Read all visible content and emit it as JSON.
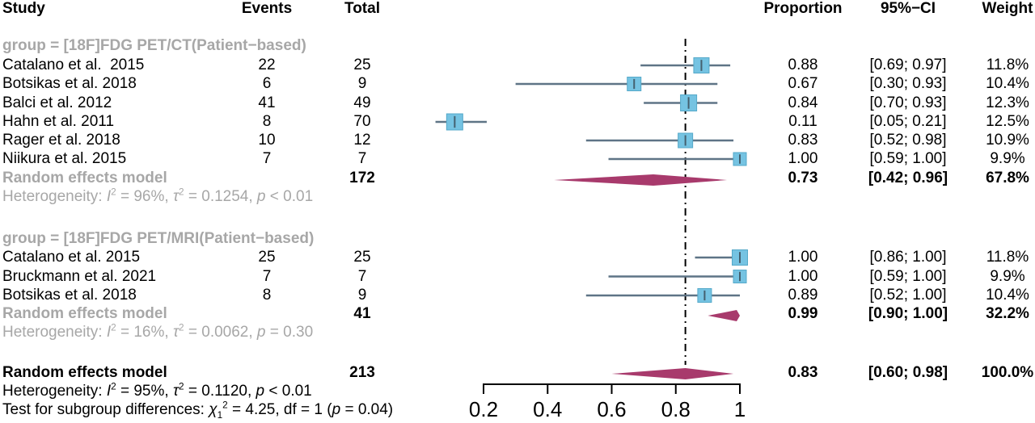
{
  "columns": {
    "study": "Study",
    "events": "Events",
    "total": "Total",
    "proportion": "Proportion",
    "ci": "95%−CI",
    "weight": "Weight"
  },
  "chart_data": {
    "type": "forest",
    "effect_measure": "Proportion",
    "axis": {
      "min": 0.2,
      "max": 1.0,
      "ticks": [
        0.2,
        0.4,
        0.6,
        0.8,
        1.0
      ],
      "labels": [
        "0.2",
        "0.4",
        "0.6",
        "0.8",
        "1"
      ]
    },
    "reference_line": 0.83,
    "groups": [
      {
        "label": "group = [18F]FDG PET/CT(Patient−based)",
        "studies": [
          {
            "study": "Catalano et al.  2015",
            "events": "22",
            "total": "25",
            "proportion": 0.88,
            "ci_low": 0.69,
            "ci_high": 0.97,
            "ci_text": "[0.69; 0.97]",
            "weight": 11.8,
            "weight_text": "11.8%"
          },
          {
            "study": "Botsikas et al. 2018",
            "events": "6",
            "total": "9",
            "proportion": 0.67,
            "ci_low": 0.3,
            "ci_high": 0.93,
            "ci_text": "[0.30; 0.93]",
            "weight": 10.4,
            "weight_text": "10.4%"
          },
          {
            "study": "Balci et al. 2012",
            "events": "41",
            "total": "49",
            "proportion": 0.84,
            "ci_low": 0.7,
            "ci_high": 0.93,
            "ci_text": "[0.70; 0.93]",
            "weight": 12.3,
            "weight_text": "12.3%"
          },
          {
            "study": "Hahn et al. 2011",
            "events": "8",
            "total": "70",
            "proportion": 0.11,
            "ci_low": 0.05,
            "ci_high": 0.21,
            "ci_text": "[0.05; 0.21]",
            "weight": 12.5,
            "weight_text": "12.5%"
          },
          {
            "study": "Rager et al. 2018",
            "events": "10",
            "total": "12",
            "proportion": 0.83,
            "ci_low": 0.52,
            "ci_high": 0.98,
            "ci_text": "[0.52; 0.98]",
            "weight": 10.9,
            "weight_text": "10.9%"
          },
          {
            "study": "Niikura et al. 2015",
            "events": "7",
            "total": "7",
            "proportion": 1.0,
            "ci_low": 0.59,
            "ci_high": 1.0,
            "ci_text": "[0.59; 1.00]",
            "weight": 9.9,
            "weight_text": "9.9%"
          }
        ],
        "summary": {
          "label": "Random effects model",
          "total": "172",
          "proportion": 0.73,
          "ci_low": 0.42,
          "ci_high": 0.96,
          "ci_text": "[0.42; 0.96]",
          "weight_text": "67.8%"
        },
        "heterogeneity": "Heterogeneity: I² = 96%, τ² = 0.1254, p < 0.01"
      },
      {
        "label": "group = [18F]FDG PET/MRI(Patient−based)",
        "studies": [
          {
            "study": "Catalano et al. 2015",
            "events": "25",
            "total": "25",
            "proportion": 1.0,
            "ci_low": 0.86,
            "ci_high": 1.0,
            "ci_text": "[0.86; 1.00]",
            "weight": 11.8,
            "weight_text": "11.8%"
          },
          {
            "study": "Bruckmann et al. 2021",
            "events": "7",
            "total": "7",
            "proportion": 1.0,
            "ci_low": 0.59,
            "ci_high": 1.0,
            "ci_text": "[0.59; 1.00]",
            "weight": 9.9,
            "weight_text": "9.9%"
          },
          {
            "study": "Botsikas et al. 2018",
            "events": "8",
            "total": "9",
            "proportion": 0.89,
            "ci_low": 0.52,
            "ci_high": 1.0,
            "ci_text": "[0.52; 1.00]",
            "weight": 10.4,
            "weight_text": "10.4%"
          }
        ],
        "summary": {
          "label": "Random effects model",
          "total": "41",
          "proportion": 0.99,
          "ci_low": 0.9,
          "ci_high": 1.0,
          "ci_text": "[0.90; 1.00]",
          "weight_text": "32.2%"
        },
        "heterogeneity": "Heterogeneity: I² = 16%, τ² = 0.0062, p = 0.30"
      }
    ],
    "overall": {
      "label": "Random effects model",
      "total": "213",
      "proportion": 0.83,
      "ci_low": 0.6,
      "ci_high": 0.98,
      "ci_text": "[0.60; 0.98]",
      "weight_text": "100.0%"
    },
    "overall_heterogeneity": "Heterogeneity: I² = 95%, τ² = 0.1120, p < 0.01",
    "subgroup_test": "Test for subgroup differences: χ₁² = 4.25, df = 1 (p = 0.04)"
  },
  "colors": {
    "square": "#75c3e2",
    "square_border": "#55a9c9",
    "ci_line": "#5e7486",
    "estimate_tick": "#44606f",
    "diamond": "#a83a6c",
    "reference_line": "#000000",
    "axis": "#000000",
    "group_text": "#a7a7a7",
    "body_text": "#000000"
  }
}
